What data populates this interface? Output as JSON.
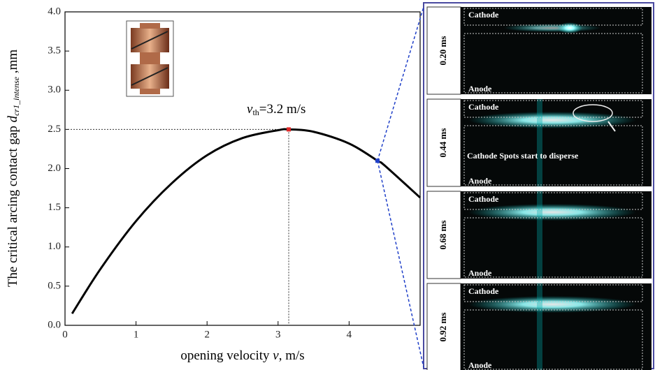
{
  "chart_data": {
    "type": "line",
    "x_label_parts": [
      "opening velocity ",
      "v",
      ", m/s"
    ],
    "y_label_parts": [
      "The critical arcing contact gap ",
      "d",
      "cr1_intense",
      " ,mm"
    ],
    "annotation_parts": [
      "v",
      "th",
      "=3.2 m/s"
    ],
    "x": [
      0.1,
      0.5,
      1,
      1.5,
      2,
      2.5,
      3,
      3.15,
      3.5,
      4,
      4.4,
      4.5,
      5
    ],
    "series": [
      {
        "color": "#000000",
        "values": [
          0.15,
          0.72,
          1.33,
          1.81,
          2.17,
          2.39,
          2.49,
          2.5,
          2.47,
          2.32,
          2.1,
          2.04,
          1.63
        ]
      }
    ],
    "markers": [
      {
        "x": 3.15,
        "y": 2.5,
        "color": "#e02828"
      },
      {
        "x": 4.4,
        "y": 2.1,
        "color": "#1f3fc8"
      }
    ],
    "xlim": [
      0,
      5
    ],
    "xticks": [
      0,
      1,
      2,
      3,
      4
    ],
    "ylim": [
      0,
      4
    ],
    "yticks": [
      {
        "value": 0,
        "label": "0.0"
      },
      {
        "value": 0.5,
        "label": "0.5"
      },
      {
        "value": 1,
        "label": "1.0"
      },
      {
        "value": 1.5,
        "label": "1.5"
      },
      {
        "value": 2,
        "label": "2.0"
      },
      {
        "value": 2.5,
        "label": "2.5"
      },
      {
        "value": 3,
        "label": "3.0"
      },
      {
        "value": 3.5,
        "label": "3.5"
      },
      {
        "value": 4,
        "label": "4.0"
      }
    ]
  },
  "panels": [
    {
      "time": "0.20 ms",
      "top": "Cathode",
      "bottom": "Anode"
    },
    {
      "time": "0.44 ms",
      "top": "Cathode",
      "bottom": "Anode",
      "note": "Cathode Spots start to disperse"
    },
    {
      "time": "0.68 ms",
      "top": "Cathode",
      "bottom": "Anode"
    },
    {
      "time": "0.92 ms",
      "top": "Cathode",
      "bottom": "Anode"
    }
  ]
}
